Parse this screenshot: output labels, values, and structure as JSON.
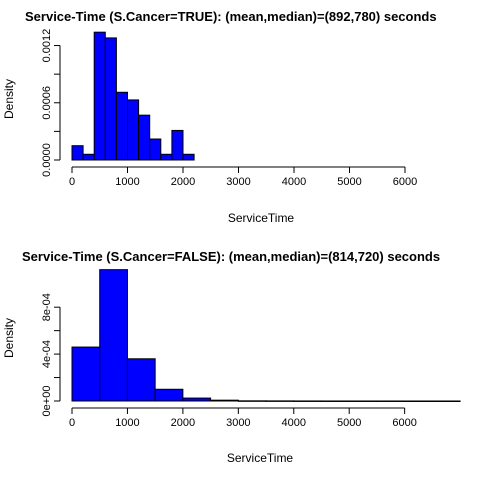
{
  "chart_data": [
    {
      "type": "histogram",
      "title": "Service-Time (S.Cancer=TRUE): (mean,median)=(892,780) seconds",
      "xlabel": "ServiceTime",
      "ylabel": "Density",
      "xlim": [
        0,
        6000
      ],
      "ylim": [
        0,
        0.0013
      ],
      "x_ticks": [
        "0",
        "1000",
        "2000",
        "3000",
        "4000",
        "5000",
        "6000"
      ],
      "y_ticks": [
        "0.0000",
        "0.0006",
        "0.0012"
      ],
      "y_tick_values": [
        0,
        0.0006,
        0.0012
      ],
      "bin_edges": [
        0,
        200,
        400,
        600,
        800,
        1000,
        1200,
        1400,
        1600,
        1800,
        2000,
        2200
      ],
      "values": [
        0.00015,
        6e-05,
        0.00134,
        0.00128,
        0.00071,
        0.00063,
        0.00047,
        0.00022,
        6e-05,
        0.00031,
        6e-05
      ],
      "bar_color": "#0000ff",
      "grid": false
    },
    {
      "type": "histogram",
      "title": "Service-Time (S.Cancer=FALSE): (mean,median)=(814,720) seconds",
      "xlabel": "ServiceTime",
      "ylabel": "Density",
      "xlim": [
        0,
        6800
      ],
      "ylim": [
        0,
        0.0011
      ],
      "x_ticks": [
        "0",
        "1000",
        "2000",
        "3000",
        "4000",
        "5000",
        "6000"
      ],
      "y_ticks": [
        "0e+00",
        "4e-04",
        "8e-04"
      ],
      "y_tick_values": [
        0,
        0.0004,
        0.0008
      ],
      "bin_edges": [
        0,
        500,
        1000,
        1500,
        2000,
        2500,
        3000,
        3500,
        4000,
        4500,
        5000,
        5500,
        6000,
        6500,
        7000
      ],
      "values": [
        0.00046,
        0.00112,
        0.00036,
        0.0001,
        2.5e-05,
        7e-06,
        1.5e-06,
        1e-06,
        5e-07,
        3e-07,
        2e-07,
        2e-07,
        1e-07,
        1e-07
      ],
      "bar_color": "#0000ff",
      "grid": false
    }
  ]
}
